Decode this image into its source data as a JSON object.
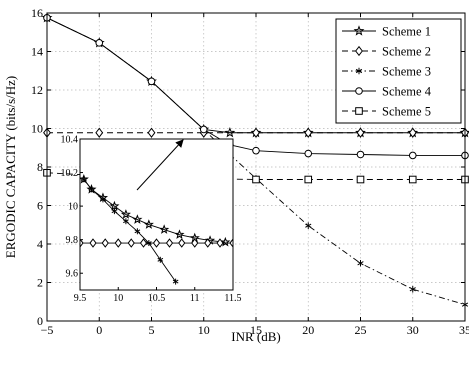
{
  "chart_data": {
    "type": "line",
    "xlabel": "INR (dB)",
    "ylabel": "ERGODIC CAPACITY (bits/s/Hz)",
    "xlim": [
      -5,
      35
    ],
    "ylim": [
      0,
      16
    ],
    "xticks": [
      -5,
      0,
      5,
      10,
      15,
      20,
      25,
      30,
      35
    ],
    "yticks": [
      0,
      2,
      4,
      6,
      8,
      10,
      12,
      14,
      16
    ],
    "grid": true,
    "legend_position": "top-right",
    "series": [
      {
        "name": "Scheme 1",
        "marker": "star",
        "dash": "solid",
        "x": [
          -5,
          0,
          5,
          10,
          12.5,
          15,
          20,
          25,
          30,
          35
        ],
        "y": [
          15.75,
          14.45,
          12.45,
          9.95,
          9.78,
          9.78,
          9.78,
          9.78,
          9.78,
          9.78
        ]
      },
      {
        "name": "Scheme 2",
        "marker": "diamond",
        "dash": "dashed",
        "x": [
          -5,
          0,
          5,
          10,
          15,
          20,
          25,
          30,
          35
        ],
        "y": [
          9.78,
          9.78,
          9.78,
          9.78,
          9.78,
          9.78,
          9.78,
          9.78,
          9.78
        ]
      },
      {
        "name": "Scheme 3",
        "marker": "asterisk",
        "dash": "dashdot",
        "x": [
          -5,
          0,
          5,
          10,
          12.5,
          15,
          20,
          25,
          30,
          35
        ],
        "y": [
          15.75,
          14.45,
          12.45,
          9.95,
          8.65,
          7.4,
          4.95,
          3.0,
          1.65,
          0.85
        ]
      },
      {
        "name": "Scheme 4",
        "marker": "circle",
        "dash": "solid",
        "x": [
          -5,
          0,
          5,
          10,
          12.5,
          15,
          20,
          25,
          30,
          35
        ],
        "y": [
          15.75,
          14.45,
          12.45,
          9.95,
          9.15,
          8.85,
          8.7,
          8.65,
          8.6,
          8.6
        ]
      },
      {
        "name": "Scheme 5",
        "marker": "square",
        "dash": "dashed",
        "x": [
          -5,
          0,
          5,
          10,
          15,
          20,
          25,
          30,
          35
        ],
        "y": [
          7.7,
          7.55,
          7.45,
          7.4,
          7.35,
          7.35,
          7.35,
          7.35,
          7.35
        ]
      }
    ],
    "inset": {
      "xlim": [
        9.5,
        11.5
      ],
      "ylim": [
        9.5,
        10.4
      ],
      "xticks": [
        9.5,
        10,
        10.5,
        11,
        11.5
      ],
      "yticks": [
        9.6,
        9.8,
        10,
        10.2,
        10.4
      ],
      "series": [
        {
          "name": "Scheme 1",
          "marker": "star",
          "dash": "solid",
          "x": [
            9.55,
            9.65,
            9.8,
            9.95,
            10.1,
            10.25,
            10.4,
            10.6,
            10.8,
            11.0,
            11.2,
            11.4
          ],
          "y": [
            10.16,
            10.1,
            10.05,
            10.0,
            9.95,
            9.92,
            9.89,
            9.86,
            9.83,
            9.81,
            9.795,
            9.785
          ]
        },
        {
          "name": "Scheme 2",
          "marker": "diamond",
          "dash": "solid",
          "x": [
            9.5,
            9.67,
            9.83,
            10.0,
            10.17,
            10.33,
            10.5,
            10.67,
            10.83,
            11.0,
            11.17,
            11.33,
            11.5
          ],
          "y": [
            9.78,
            9.78,
            9.78,
            9.78,
            9.78,
            9.78,
            9.78,
            9.78,
            9.78,
            9.78,
            9.78,
            9.78,
            9.78
          ]
        },
        {
          "name": "Scheme 3",
          "marker": "asterisk",
          "dash": "solid",
          "x": [
            9.55,
            9.65,
            9.8,
            9.95,
            10.1,
            10.25,
            10.4,
            10.55,
            10.75
          ],
          "y": [
            10.16,
            10.1,
            10.04,
            9.97,
            9.91,
            9.85,
            9.78,
            9.68,
            9.55
          ]
        }
      ]
    },
    "annotations": [
      "arrow from inset top edge to zoom point near (10, 9.95)"
    ],
    "colors": {
      "line": "#000000",
      "grid": "#b8b8b8",
      "background": "#ffffff"
    }
  }
}
